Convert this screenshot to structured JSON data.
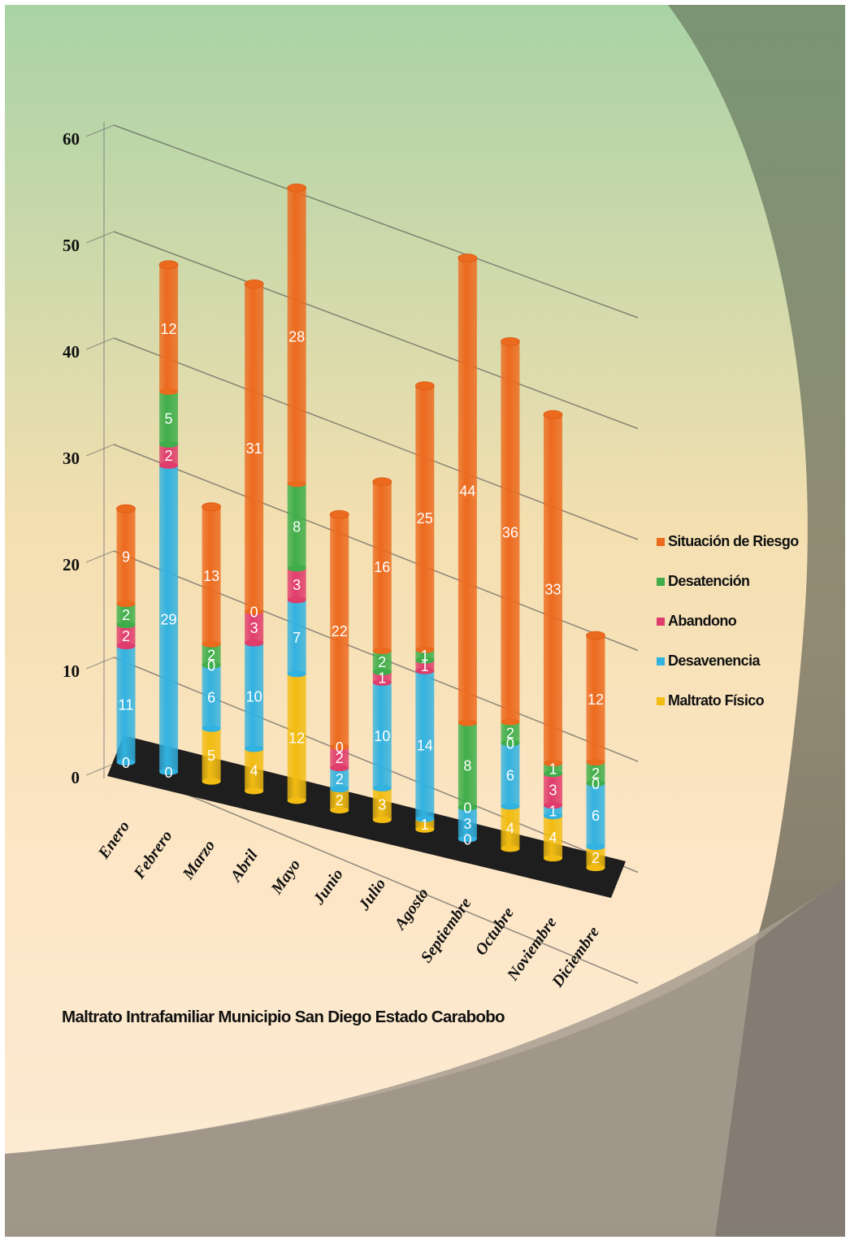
{
  "caption": "Maltrato Intrafamiliar Municipio San Diego Estado Carabobo",
  "colors": {
    "Situación de Riesgo": "#ec6a1e",
    "Desatención": "#3fae4a",
    "Abandono": "#e03c6c",
    "Desavenencia": "#32b2e0",
    "Maltrato Físico": "#f2bc12"
  },
  "legend": [
    {
      "label": "Situación de Riesgo",
      "color": "#ec6a1e"
    },
    {
      "label": "Desatención",
      "color": "#3fae4a"
    },
    {
      "label": "Abandono",
      "color": "#e03c6c"
    },
    {
      "label": "Desavenencia",
      "color": "#32b2e0"
    },
    {
      "label": "Maltrato Físico",
      "color": "#f2bc12"
    }
  ],
  "chart_data": {
    "type": "bar",
    "stacked": true,
    "three_d": true,
    "title": "Maltrato Intrafamiliar Municipio San Diego Estado Carabobo",
    "categories": [
      "Enero",
      "Febrero",
      "Marzo",
      "Abril",
      "Mayo",
      "Junio",
      "Julio",
      "Agosto",
      "Septiembre",
      "Octubre",
      "Noviembre",
      "Diciembre"
    ],
    "ylim": [
      0,
      60
    ],
    "yticks": [
      0,
      10,
      20,
      30,
      40,
      50,
      60
    ],
    "grid": true,
    "legend_position": "right",
    "series": [
      {
        "name": "Maltrato Físico",
        "values": [
          0,
          0,
          5,
          4,
          12,
          2,
          3,
          1,
          0,
          4,
          4,
          2
        ]
      },
      {
        "name": "Desavenencia",
        "values": [
          11,
          29,
          6,
          10,
          7,
          2,
          10,
          14,
          3,
          6,
          1,
          6
        ]
      },
      {
        "name": "Abandono",
        "values": [
          2,
          2,
          0,
          3,
          3,
          2,
          1,
          1,
          0,
          0,
          3,
          0
        ]
      },
      {
        "name": "Desatención",
        "values": [
          2,
          5,
          2,
          0,
          8,
          0,
          2,
          1,
          8,
          2,
          1,
          2
        ]
      },
      {
        "name": "Situación de Riesgo",
        "values": [
          9,
          12,
          13,
          31,
          28,
          22,
          16,
          25,
          44,
          36,
          33,
          12
        ]
      }
    ]
  }
}
